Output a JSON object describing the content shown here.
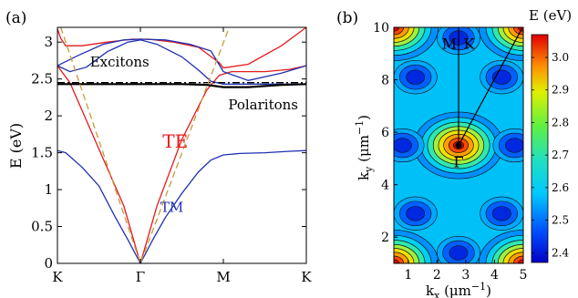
{
  "figure": {
    "panel_a_label": "(a)",
    "panel_b_label": "(b)"
  },
  "chart_data": [
    {
      "type": "line",
      "panel": "(a)",
      "ylabel": "E (eV)",
      "ylim": [
        0,
        3.2
      ],
      "yticks": [
        0,
        0.5,
        1,
        1.5,
        2,
        2.5,
        3
      ],
      "ytick_labels": [
        "0",
        "0.5",
        "1",
        "1.5",
        "2",
        "2.5",
        "3"
      ],
      "xticks": [
        0,
        1,
        2,
        3
      ],
      "xtick_labels": [
        "K",
        "Γ",
        "M",
        "K"
      ],
      "grid": false,
      "annotations": [
        {
          "text": "Excitons",
          "x": 0.75,
          "y": 2.67,
          "color": "#000000"
        },
        {
          "text": "Polaritons",
          "x": 2.48,
          "y": 2.09,
          "color": "#000000"
        },
        {
          "text": "TE",
          "x": 1.42,
          "y": 1.57,
          "color": "#e41a1a"
        },
        {
          "text": "TM",
          "x": 1.38,
          "y": 0.7,
          "color": "#1f2fb0"
        }
      ],
      "series": [
        {
          "role": "TE",
          "color": "#e41a1a",
          "style": "solid",
          "points": [
            [
              0,
              3.18
            ],
            [
              0.04,
              3.05
            ],
            [
              0.1,
              2.95
            ],
            [
              0.3,
              2.95
            ],
            [
              0.6,
              3.0
            ],
            [
              0.9,
              3.04
            ],
            [
              1.1,
              3.04
            ],
            [
              1.4,
              3.0
            ],
            [
              1.7,
              2.93
            ],
            [
              1.95,
              2.72
            ],
            [
              2.0,
              2.65
            ],
            [
              2.3,
              2.7
            ],
            [
              2.7,
              2.95
            ],
            [
              3.0,
              3.2
            ]
          ]
        },
        {
          "role": "TE",
          "color": "#e41a1a",
          "style": "solid",
          "points": [
            [
              0,
              2.68
            ],
            [
              0.15,
              2.45
            ],
            [
              0.45,
              1.68
            ],
            [
              0.8,
              0.78
            ],
            [
              1.0,
              0
            ],
            [
              1.2,
              0.78
            ],
            [
              1.5,
              1.68
            ],
            [
              1.8,
              2.35
            ],
            [
              1.95,
              2.55
            ],
            [
              2.1,
              2.6
            ],
            [
              2.5,
              2.6
            ],
            [
              2.8,
              2.63
            ],
            [
              3.0,
              2.68
            ]
          ]
        },
        {
          "role": "TM",
          "color": "#1f2fb0",
          "style": "solid",
          "points": [
            [
              0,
              1.53
            ],
            [
              0.1,
              1.5
            ],
            [
              0.3,
              1.3
            ],
            [
              0.5,
              1.05
            ],
            [
              0.7,
              0.62
            ],
            [
              0.85,
              0.32
            ],
            [
              1.0,
              0
            ],
            [
              1.15,
              0.32
            ],
            [
              1.3,
              0.62
            ],
            [
              1.5,
              0.95
            ],
            [
              1.7,
              1.24
            ],
            [
              1.85,
              1.4
            ],
            [
              2.0,
              1.47
            ],
            [
              2.2,
              1.49
            ],
            [
              2.5,
              1.5
            ],
            [
              2.8,
              1.52
            ],
            [
              3.0,
              1.53
            ]
          ]
        },
        {
          "role": "TM",
          "color": "#1f2fb0",
          "style": "solid",
          "points": [
            [
              0,
              2.68
            ],
            [
              0.25,
              2.82
            ],
            [
              0.55,
              2.97
            ],
            [
              0.8,
              3.03
            ],
            [
              1.0,
              3.04
            ],
            [
              1.3,
              3.03
            ],
            [
              1.6,
              2.97
            ],
            [
              1.85,
              2.88
            ],
            [
              2.0,
              2.6
            ],
            [
              2.3,
              2.48
            ],
            [
              2.7,
              2.58
            ],
            [
              3.0,
              2.68
            ]
          ]
        },
        {
          "role": "TM",
          "color": "#1f2fb0",
          "style": "solid",
          "points": [
            [
              0,
              2.68
            ],
            [
              0.15,
              2.6
            ],
            [
              0.35,
              2.66
            ],
            [
              0.6,
              2.87
            ],
            [
              0.85,
              3.0
            ],
            [
              1.0,
              3.03
            ],
            [
              1.2,
              2.97
            ],
            [
              1.5,
              2.8
            ],
            [
              1.7,
              2.62
            ],
            [
              1.85,
              2.47
            ],
            [
              2.0,
              2.43
            ],
            [
              2.3,
              2.43
            ],
            [
              2.7,
              2.43
            ],
            [
              3.0,
              2.43
            ]
          ]
        },
        {
          "role": "polariton",
          "color": "#000000",
          "style": "solid",
          "points": [
            [
              0,
              2.43
            ],
            [
              0.5,
              2.43
            ],
            [
              1.0,
              2.43
            ],
            [
              1.5,
              2.43
            ],
            [
              1.8,
              2.42
            ],
            [
              2.0,
              2.39
            ],
            [
              2.3,
              2.39
            ],
            [
              2.7,
              2.42
            ],
            [
              3.0,
              2.43
            ]
          ]
        },
        {
          "role": "exciton",
          "color": "#000000",
          "style": "dashdot",
          "points": [
            [
              0,
              2.45
            ],
            [
              3.0,
              2.45
            ]
          ]
        },
        {
          "role": "light-line",
          "color": "#c79a3a",
          "style": "dashed",
          "points": [
            [
              0.04,
              3.2
            ],
            [
              1.0,
              0
            ],
            [
              2.07,
              3.2
            ]
          ]
        }
      ]
    },
    {
      "type": "heatmap",
      "panel": "(b)",
      "xlabel": "kx (μm−1)",
      "ylabel": "ky (μm−1)",
      "xlim": [
        0.5,
        5
      ],
      "ylim": [
        1,
        10
      ],
      "xticks": [
        1,
        2,
        3,
        4,
        5
      ],
      "xtick_labels": [
        "1",
        "2",
        "3",
        "4",
        "5"
      ],
      "yticks": [
        2,
        4,
        6,
        8,
        10
      ],
      "ytick_labels": [
        "2",
        "4",
        "6",
        "8",
        "10"
      ],
      "colorbar_title": "E (eV)",
      "colorbar_range": [
        2.37,
        3.07
      ],
      "colorbar_ticks": [
        2.4,
        2.5,
        2.6,
        2.7,
        2.8,
        2.9,
        3.0
      ],
      "colorbar_tick_labels": [
        "2.4",
        "2.5",
        "2.6",
        "2.7",
        "2.8",
        "2.9",
        "3.0"
      ],
      "high_symbol_points": [
        {
          "label": "Γ",
          "x": 2.75,
          "y": 5.5
        },
        {
          "label": "M",
          "x": 2.75,
          "y": 9.6
        },
        {
          "label": "K",
          "x": 4.0,
          "y": 9.6
        }
      ],
      "maxima": [
        {
          "x": 2.75,
          "y": 5.5,
          "value": 3.07
        },
        {
          "x": 0.5,
          "y": 1.0,
          "value": 3.07
        },
        {
          "x": 5.0,
          "y": 1.0,
          "value": 3.07
        },
        {
          "x": 0.5,
          "y": 10.0,
          "value": 3.07
        },
        {
          "x": 5.0,
          "y": 10.0,
          "value": 3.07
        }
      ],
      "minima": [
        {
          "x": 1.25,
          "y": 8.1,
          "value": 2.4
        },
        {
          "x": 4.25,
          "y": 8.1,
          "value": 2.4
        },
        {
          "x": 0.8,
          "y": 5.5,
          "value": 2.4
        },
        {
          "x": 4.7,
          "y": 5.5,
          "value": 2.4
        },
        {
          "x": 1.25,
          "y": 2.9,
          "value": 2.4
        },
        {
          "x": 4.25,
          "y": 2.9,
          "value": 2.4
        },
        {
          "x": 2.75,
          "y": 1.4,
          "value": 2.4
        },
        {
          "x": 2.75,
          "y": 9.6,
          "value": 2.4
        }
      ]
    }
  ]
}
